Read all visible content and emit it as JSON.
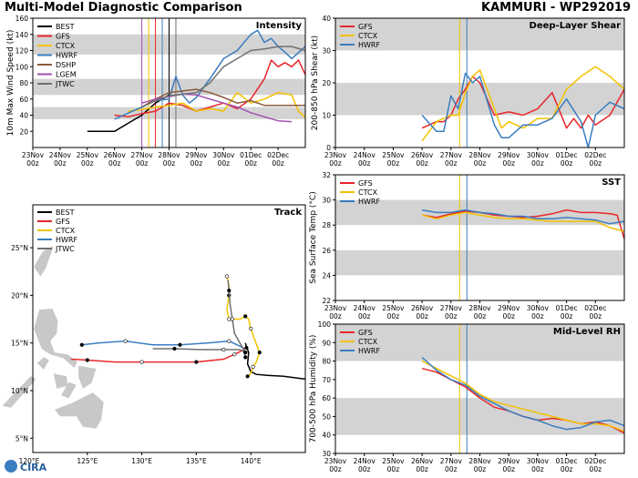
{
  "header": {
    "left_title": "Multi-Model Diagnostic Comparison",
    "right_title": "KAMMURI - WP292019"
  },
  "logo": {
    "text": "CIRA"
  },
  "colors": {
    "BEST": "#000000",
    "GFS": "#e8262a",
    "CTCX": "#f2c200",
    "HWRF": "#3a7dc0",
    "DSHP": "#8b5a3c",
    "LGEM": "#a14fb0",
    "JTWC": "#707070",
    "band": "#d3d3d3",
    "land": "#c8c8c8"
  },
  "date_ticks": [
    "23Nov\n00z",
    "24Nov\n00z",
    "25Nov\n00z",
    "26Nov\n00z",
    "27Nov\n00z",
    "28Nov\n00z",
    "29Nov\n00z",
    "30Nov\n00z",
    "01Dec\n00z",
    "02Dec\n00z"
  ],
  "chart_data": [
    {
      "id": "intensity",
      "type": "line",
      "title": "Intensity",
      "ylabel": "10m Max Wind Speed (kt)",
      "ylim": [
        0,
        160
      ],
      "yticks": [
        20,
        40,
        60,
        80,
        100,
        120,
        140,
        160
      ],
      "xlim": [
        0,
        10
      ],
      "bands": [
        [
          35,
          50
        ],
        [
          65,
          85
        ],
        [
          115,
          140
        ]
      ],
      "vlines": [
        {
          "x": 4.0,
          "color": "LGEM"
        },
        {
          "x": 4.25,
          "color": "CTCX"
        },
        {
          "x": 4.5,
          "color": "GFS"
        },
        {
          "x": 4.75,
          "color": "HWRF"
        },
        {
          "x": 5.0,
          "color": "BEST"
        },
        {
          "x": 5.25,
          "color": "JTWC"
        }
      ],
      "legend": [
        "BEST",
        "GFS",
        "CTCX",
        "HWRF",
        "DSHP",
        "LGEM",
        "JTWC"
      ],
      "series": [
        {
          "name": "BEST",
          "x": [
            2,
            2.5,
            3,
            3.5,
            4,
            4.5,
            5
          ],
          "y": [
            20,
            20,
            20,
            30,
            40,
            55,
            65
          ]
        },
        {
          "name": "GFS",
          "x": [
            3,
            3.5,
            4,
            4.5,
            5,
            5.5,
            6,
            6.5,
            7,
            7.5,
            8,
            8.5,
            8.75,
            9,
            9.25,
            9.5,
            9.75,
            10
          ],
          "y": [
            40,
            38,
            42,
            45,
            55,
            52,
            45,
            50,
            55,
            48,
            60,
            85,
            108,
            100,
            105,
            100,
            108,
            90
          ]
        },
        {
          "name": "CTCX",
          "x": [
            3.5,
            4,
            4.5,
            5,
            5.5,
            6,
            6.5,
            7,
            7.5,
            8,
            8.5,
            9,
            9.5,
            9.75,
            10
          ],
          "y": [
            45,
            47,
            50,
            52,
            55,
            45,
            48,
            45,
            68,
            55,
            60,
            68,
            65,
            45,
            37
          ]
        },
        {
          "name": "HWRF",
          "x": [
            3,
            4,
            4.5,
            5,
            5.25,
            5.5,
            5.75,
            6,
            6.5,
            7,
            7.5,
            8,
            8.25,
            8.5,
            8.75,
            9,
            9.25,
            9.5,
            10
          ],
          "y": [
            35,
            50,
            58,
            60,
            88,
            65,
            55,
            62,
            85,
            110,
            120,
            140,
            145,
            130,
            135,
            125,
            118,
            110,
            125
          ]
        },
        {
          "name": "DSHP",
          "x": [
            4,
            4.5,
            5,
            5.5,
            6,
            6.5,
            7,
            7.5,
            8,
            8.5,
            9,
            9.5,
            10
          ],
          "y": [
            50,
            60,
            68,
            70,
            72,
            68,
            62,
            55,
            58,
            52,
            52,
            52,
            52
          ]
        },
        {
          "name": "LGEM",
          "x": [
            4,
            4.5,
            5,
            5.5,
            6,
            6.5,
            7,
            7.5,
            8,
            8.5,
            9,
            9.5
          ],
          "y": [
            55,
            60,
            63,
            66,
            65,
            60,
            55,
            50,
            43,
            38,
            33,
            32
          ]
        },
        {
          "name": "JTWC",
          "x": [
            4,
            4.5,
            5,
            5.5,
            6,
            6.5,
            7,
            7.5,
            8,
            8.5,
            9,
            9.5,
            10
          ],
          "y": [
            50,
            58,
            64,
            66,
            68,
            80,
            100,
            110,
            120,
            122,
            125,
            125,
            120
          ]
        }
      ]
    },
    {
      "id": "shear",
      "type": "line",
      "title": "Deep-Layer Shear",
      "ylabel": "200-850 hPa Shear (kt)",
      "ylim": [
        0,
        40
      ],
      "yticks": [
        0,
        10,
        20,
        30,
        40
      ],
      "xlim": [
        0,
        10
      ],
      "bands": [
        [
          10,
          20
        ],
        [
          30,
          40
        ]
      ],
      "vlines": [
        {
          "x": 4.3,
          "color": "CTCX"
        },
        {
          "x": 4.55,
          "color": "HWRF"
        }
      ],
      "legend": [
        "GFS",
        "CTCX",
        "HWRF"
      ],
      "series": [
        {
          "name": "GFS",
          "x": [
            3,
            3.5,
            3.75,
            4,
            4.25,
            4.5,
            4.75,
            5,
            5.5,
            6,
            6.5,
            7,
            7.5,
            8,
            8.25,
            8.5,
            8.75,
            9,
            9.5,
            10
          ],
          "y": [
            6,
            8,
            8,
            10,
            15,
            18,
            22,
            20,
            10,
            11,
            10,
            12,
            17,
            6,
            9,
            6,
            10,
            7,
            10,
            18
          ]
        },
        {
          "name": "CTCX",
          "x": [
            3,
            3.5,
            4,
            4.25,
            4.5,
            4.75,
            5,
            5.5,
            5.75,
            6,
            6.5,
            7,
            7.5,
            8,
            8.5,
            9,
            9.5,
            10
          ],
          "y": [
            2,
            8,
            10,
            10,
            17,
            22,
            24,
            12,
            6,
            8,
            6,
            9,
            9,
            18,
            22,
            25,
            22,
            18
          ]
        },
        {
          "name": "HWRF",
          "x": [
            3,
            3.5,
            3.75,
            4,
            4.25,
            4.5,
            4.75,
            5,
            5.5,
            5.75,
            6,
            6.5,
            7,
            7.5,
            8,
            8.5,
            8.75,
            9,
            9.5,
            10
          ],
          "y": [
            10,
            5,
            5,
            16,
            12,
            23,
            20,
            22,
            7,
            3,
            3,
            7,
            7,
            9,
            15,
            8,
            0,
            10,
            14,
            12
          ]
        }
      ]
    },
    {
      "id": "sst",
      "type": "line",
      "title": "SST",
      "ylabel": "Sea Surface Temp (°C)",
      "ylim": [
        22,
        32
      ],
      "yticks": [
        22,
        24,
        26,
        28,
        30,
        32
      ],
      "xlim": [
        0,
        10
      ],
      "bands": [
        [
          24,
          26
        ],
        [
          28,
          30
        ]
      ],
      "vlines": [
        {
          "x": 4.3,
          "color": "CTCX"
        },
        {
          "x": 4.55,
          "color": "HWRF"
        }
      ],
      "legend": [
        "GFS",
        "CTCX",
        "HWRF"
      ],
      "series": [
        {
          "name": "GFS",
          "x": [
            3,
            3.5,
            4,
            4.5,
            5,
            5.5,
            6,
            6.5,
            7,
            7.5,
            8,
            8.5,
            9,
            9.5,
            9.75,
            10
          ],
          "y": [
            28.8,
            28.6,
            28.9,
            29.1,
            29,
            28.8,
            28.7,
            28.6,
            28.7,
            28.9,
            29.2,
            29,
            29,
            28.9,
            28.8,
            26.9
          ]
        },
        {
          "name": "CTCX",
          "x": [
            3,
            3.5,
            4,
            4.5,
            5,
            5.5,
            6,
            6.5,
            7,
            7.5,
            8,
            8.5,
            9,
            9.5,
            10
          ],
          "y": [
            28.8,
            28.5,
            28.8,
            29,
            28.8,
            28.6,
            28.5,
            28.5,
            28.4,
            28.3,
            28.3,
            28.3,
            28.3,
            27.8,
            27.5
          ]
        },
        {
          "name": "HWRF",
          "x": [
            3,
            3.5,
            4,
            4.5,
            5,
            5.5,
            6,
            6.5,
            7,
            7.5,
            8,
            8.5,
            9,
            9.5,
            10
          ],
          "y": [
            29.2,
            29,
            29,
            29.2,
            29,
            28.9,
            28.7,
            28.7,
            28.5,
            28.5,
            28.6,
            28.5,
            28.4,
            28.1,
            28.3
          ]
        }
      ]
    },
    {
      "id": "rh",
      "type": "line",
      "title": "Mid-Level RH",
      "ylabel": "700-500 hPa Humidity (%)",
      "ylim": [
        30,
        100
      ],
      "yticks": [
        30,
        40,
        50,
        60,
        70,
        80,
        90,
        100
      ],
      "xlim": [
        0,
        10
      ],
      "bands": [
        [
          40,
          60
        ],
        [
          80,
          100
        ]
      ],
      "vlines": [
        {
          "x": 4.3,
          "color": "CTCX"
        },
        {
          "x": 4.55,
          "color": "HWRF"
        }
      ],
      "legend": [
        "GFS",
        "CTCX",
        "HWRF"
      ],
      "series": [
        {
          "name": "GFS",
          "x": [
            3,
            3.5,
            4,
            4.5,
            5,
            5.5,
            6,
            6.5,
            7,
            7.5,
            8,
            8.5,
            9,
            9.5,
            10
          ],
          "y": [
            76,
            74,
            70,
            66,
            60,
            55,
            53,
            50,
            48,
            49,
            48,
            46,
            47,
            45,
            41
          ]
        },
        {
          "name": "CTCX",
          "x": [
            3,
            3.5,
            4,
            4.5,
            5,
            5.5,
            6,
            6.5,
            7,
            7.5,
            8,
            8.5,
            9,
            9.5,
            10
          ],
          "y": [
            80,
            76,
            72,
            68,
            62,
            58,
            56,
            54,
            52,
            50,
            48,
            46,
            46,
            45,
            42
          ]
        },
        {
          "name": "HWRF",
          "x": [
            3,
            3.5,
            4,
            4.5,
            5,
            5.5,
            6,
            6.5,
            7,
            7.5,
            8,
            8.5,
            9,
            9.5,
            10
          ],
          "y": [
            82,
            75,
            70,
            67,
            61,
            57,
            53,
            50,
            48,
            45,
            43,
            44,
            47,
            48,
            45
          ]
        }
      ]
    },
    {
      "id": "track",
      "type": "scatter",
      "title": "Track",
      "xlim": [
        120,
        145
      ],
      "ylim": [
        3.5,
        29.5
      ],
      "xticks": [
        125,
        130,
        135,
        140
      ],
      "xtick_labels": [
        "125°E",
        "130°E",
        "135°E",
        "140°E"
      ],
      "yticks": [
        5,
        10,
        15,
        20,
        25
      ],
      "ytick_labels": [
        "5°N",
        "10°N",
        "15°N",
        "20°N",
        "25°N"
      ],
      "corner_label": "120°E",
      "legend": [
        "BEST",
        "GFS",
        "CTCX",
        "HWRF",
        "JTWC"
      ],
      "series": [
        {
          "name": "BEST",
          "lon": [
            145,
            143,
            141.5,
            140.5,
            140,
            139.7,
            139.8,
            139.5
          ],
          "lat": [
            11.2,
            11.5,
            11.6,
            11.7,
            12.0,
            12.8,
            14.0,
            15.0
          ]
        },
        {
          "name": "GFS",
          "lon": [
            139.6,
            139.2,
            138.5,
            137.5,
            135,
            132.5,
            130,
            127.5,
            125,
            123.5
          ],
          "lat": [
            14.5,
            14.2,
            13.8,
            13.3,
            13.0,
            13.0,
            13.0,
            13.0,
            13.2,
            13.3
          ]
        },
        {
          "name": "CTCX",
          "lon": [
            139.7,
            140,
            140.2,
            140.5,
            140.8,
            140.3,
            140.0,
            139.8,
            139.5,
            139.0,
            138.0,
            137.8,
            138.0,
            138.0,
            137.8
          ],
          "lat": [
            11.5,
            11.8,
            12.5,
            13.0,
            14.0,
            15.5,
            16.5,
            17.5,
            17.8,
            17.5,
            17.5,
            18.5,
            20.0,
            21.0,
            22.0
          ]
        },
        {
          "name": "HWRF",
          "lon": [
            139.5,
            139.3,
            138.0,
            136.0,
            133.5,
            131.0,
            128.5,
            126.0,
            124.5
          ],
          "lat": [
            13.5,
            14.5,
            15.2,
            15.0,
            14.8,
            14.8,
            15.2,
            15.0,
            14.8
          ]
        },
        {
          "name": "JTWC",
          "lon": [
            139.5,
            139.0,
            137.5,
            135.5,
            133.0,
            131.0
          ],
          "lat": [
            14.0,
            14.3,
            14.3,
            14.3,
            14.4,
            14.4
          ]
        },
        {
          "name": "JTWC_ext",
          "lon": [
            139.5,
            138.5,
            138.3,
            138.1,
            138.0,
            137.9
          ],
          "lat": [
            14.0,
            16.0,
            17.5,
            19.0,
            20.5,
            21.6
          ]
        }
      ]
    }
  ]
}
